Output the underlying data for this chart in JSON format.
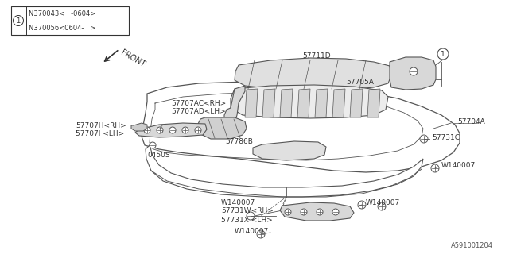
{
  "bg_color": "#ffffff",
  "line_color": "#555555",
  "dark": "#333333",
  "footer": "A591001204",
  "legend_text1": "N370043<   -0604>",
  "legend_text2": "N370056<0604-   >",
  "front_label": "FRONT"
}
